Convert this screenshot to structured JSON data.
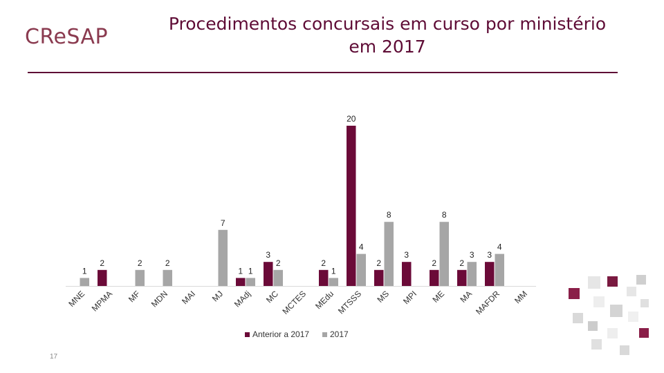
{
  "logo": {
    "text": "CReSAP"
  },
  "title": {
    "line1": "Procedimentos concursais em curso por ministério",
    "line2": "em 2017"
  },
  "page_number": "17",
  "colors": {
    "anterior": "#6b0a38",
    "y2017": "#a6a6a6",
    "title": "#5e0b35",
    "logo": "#8a3a4f"
  },
  "chart_data": {
    "type": "bar",
    "title": "",
    "xlabel": "",
    "ylabel": "",
    "ylim": [
      0,
      20
    ],
    "grid": false,
    "legend_position": "bottom",
    "categories": [
      "MNE",
      "MPMA",
      "MF",
      "MDN",
      "MAI",
      "MJ",
      "MAdj",
      "MC",
      "MCTES",
      "MEdu",
      "MTSSS",
      "MS",
      "MPI",
      "ME",
      "MA",
      "MAFDR",
      "MM"
    ],
    "series": [
      {
        "name": "Anterior a 2017",
        "values": [
          null,
          2,
          null,
          null,
          null,
          null,
          1,
          3,
          null,
          2,
          20,
          2,
          3,
          2,
          2,
          3,
          null
        ]
      },
      {
        "name": "2017",
        "values": [
          1,
          null,
          2,
          2,
          null,
          7,
          1,
          2,
          null,
          1,
          4,
          8,
          null,
          8,
          3,
          4,
          null
        ]
      }
    ]
  }
}
